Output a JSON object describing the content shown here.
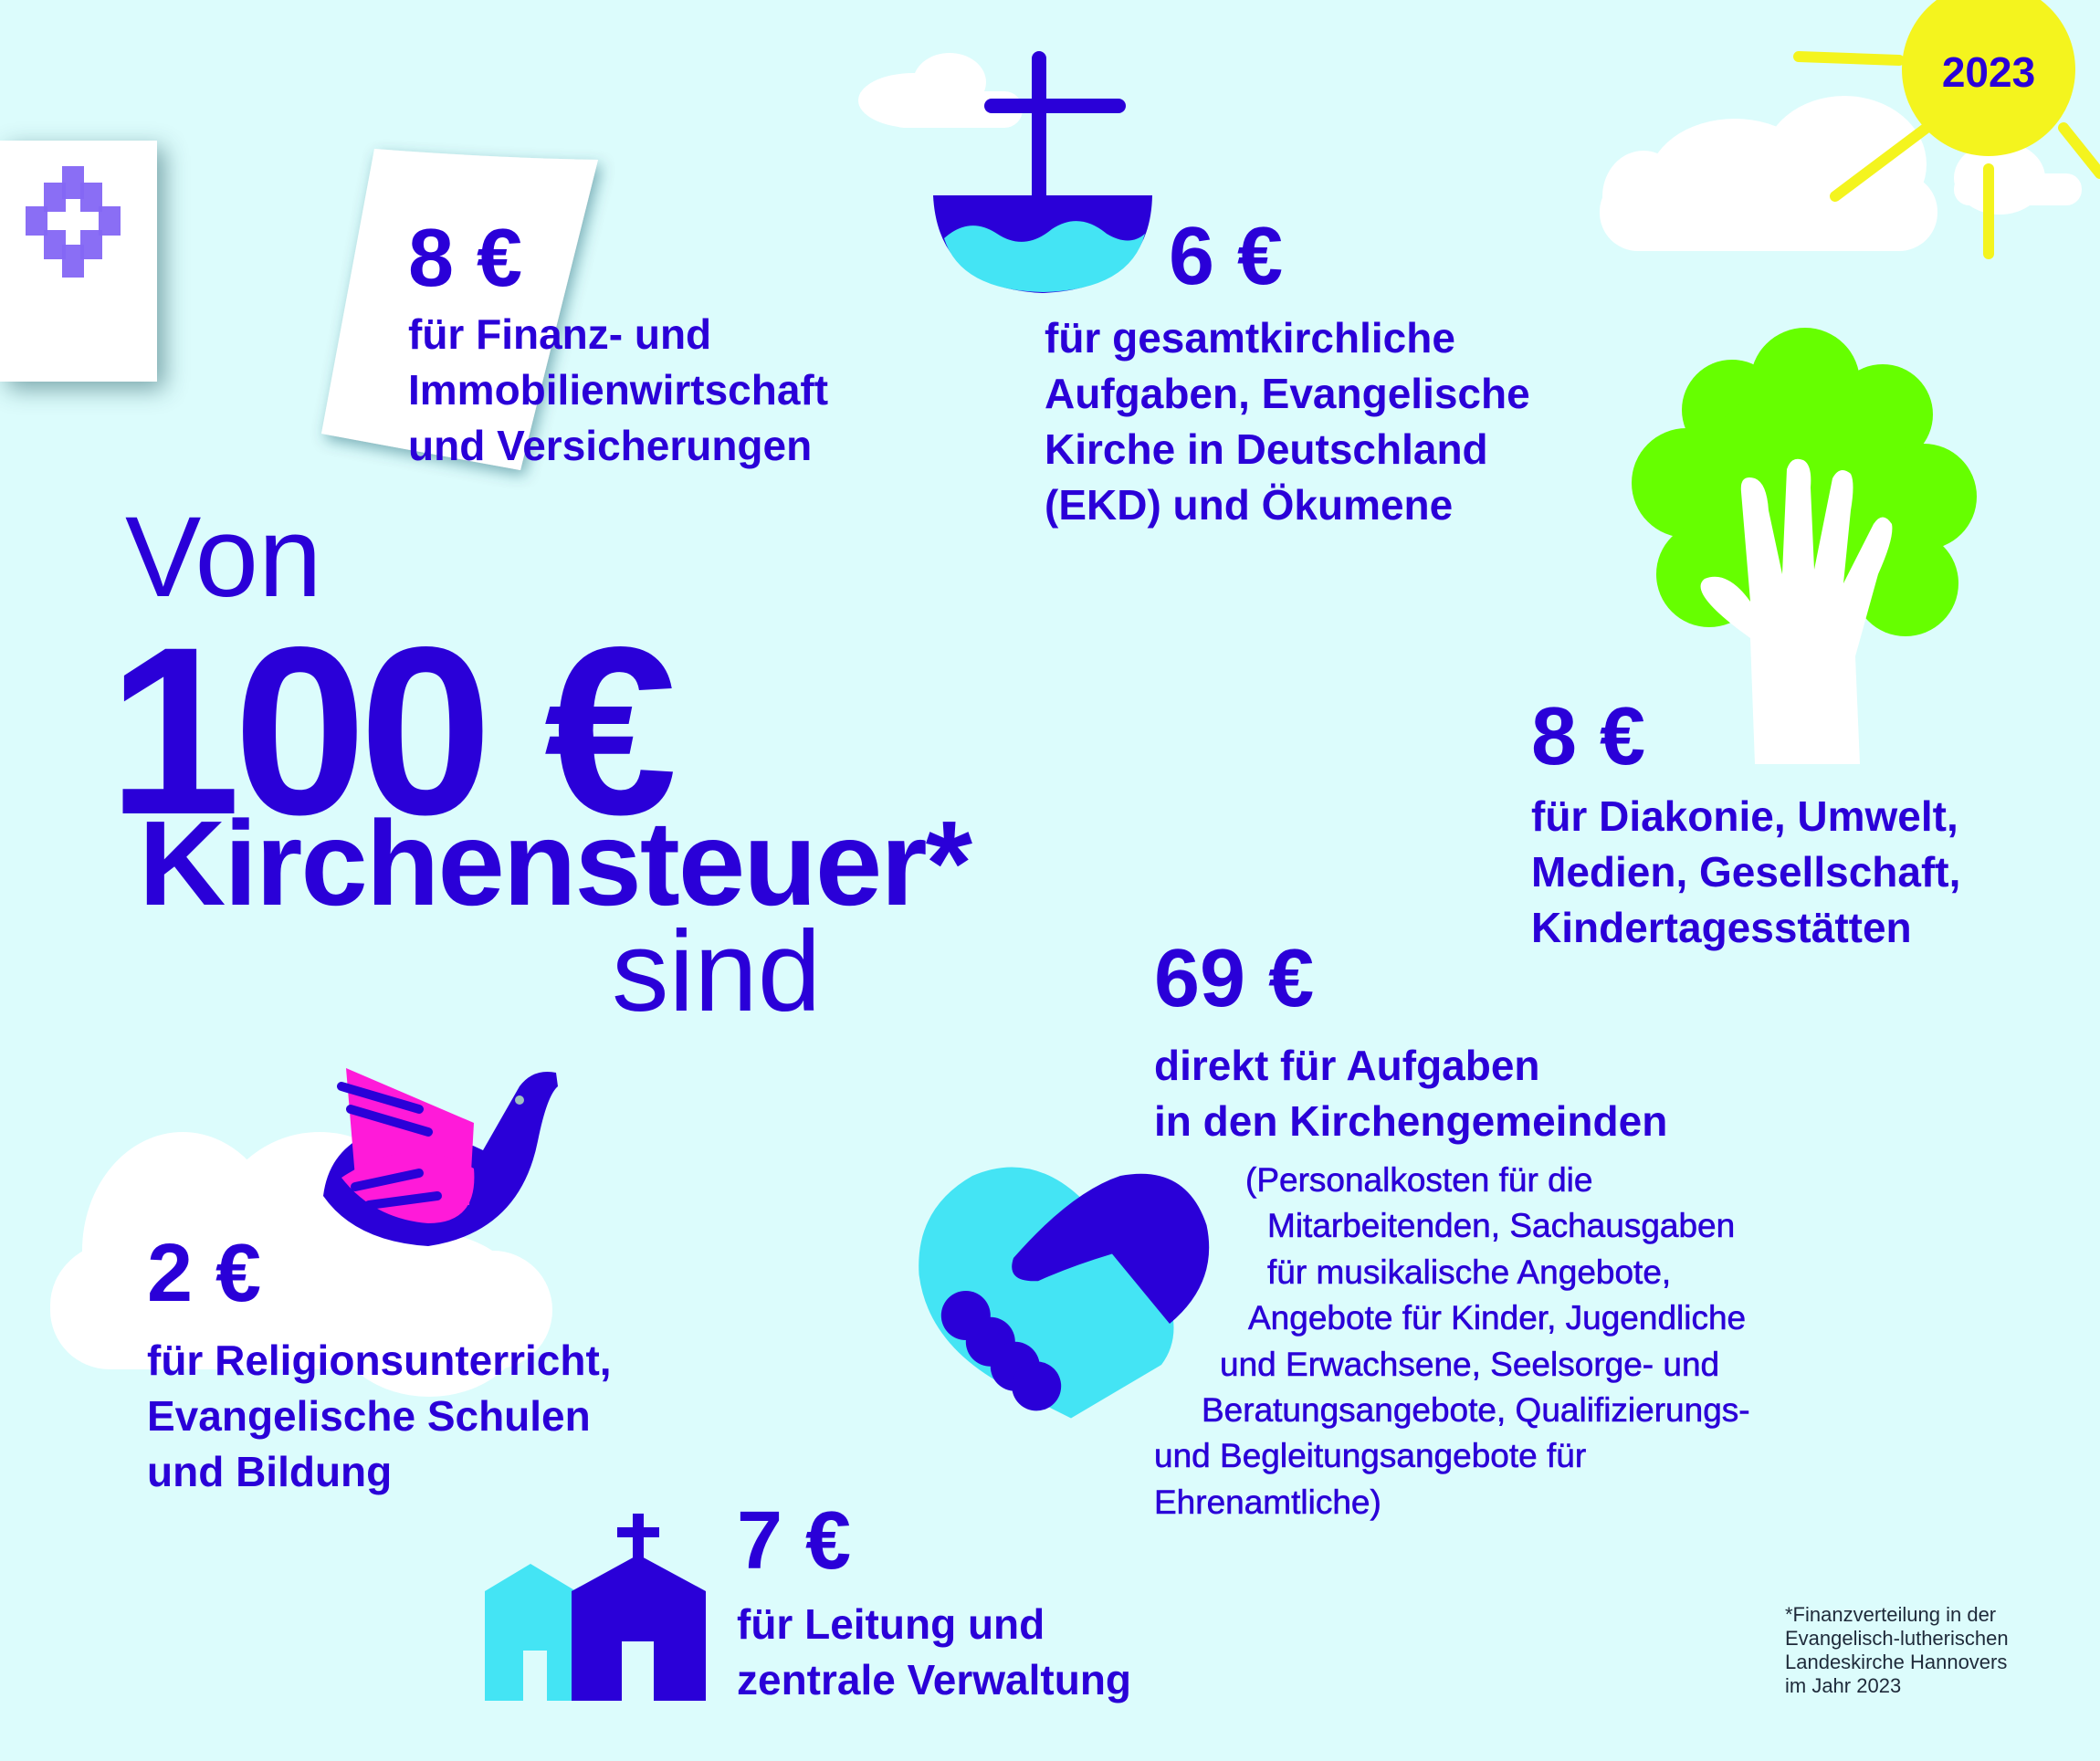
{
  "colors": {
    "background": "#dcfcfc",
    "text": "#2a00d8",
    "cyan": "#44e4f4",
    "green": "#66ff00",
    "magenta": "#ff1ad9",
    "sun": "#f4f41e",
    "logo": "#8466f4"
  },
  "year_badge": "2023",
  "headline": {
    "von": "Von",
    "amount": "100 €",
    "subject": "Kirchensteuer*",
    "sind": "sind"
  },
  "items": [
    {
      "icon": "document-icon",
      "amount": "8 €",
      "lines": [
        "für Finanz- und",
        "Immobilienwirtschaft",
        "und Versicherungen"
      ]
    },
    {
      "icon": "boat-cross-icon",
      "amount": "6 €",
      "lines": [
        "für gesamtkirchliche",
        "Aufgaben, Evangelische",
        "Kirche in Deutschland",
        "(EKD) und Ökumene"
      ]
    },
    {
      "icon": "tree-hand-icon",
      "amount": "8 €",
      "lines": [
        "für Diakonie, Umwelt,",
        "Medien, Gesellschaft,",
        "Kindertagesstätten"
      ]
    },
    {
      "icon": "handshake-heart-icon",
      "amount": "69 €",
      "lines": [
        "direkt für Aufgaben",
        "in den Kirchengemeinden"
      ],
      "detail": [
        "(Personalkosten für die",
        "Mitarbeitenden, Sachausgaben",
        "für musikalische Angebote,",
        "Angebote für Kinder, Jugendliche",
        "und Erwachsene, Seelsorge- und",
        "Beratungsangebote, Qualifizierungs-",
        "und Begleitungsangebote für",
        "Ehrenamtliche)"
      ]
    },
    {
      "icon": "dove-icon",
      "amount": "2 €",
      "lines": [
        "für Religionsunterricht,",
        "Evangelische Schulen",
        "und Bildung"
      ]
    },
    {
      "icon": "church-icon",
      "amount": "7 €",
      "lines": [
        "für Leitung und",
        "zentrale Verwaltung"
      ]
    }
  ],
  "footnote": [
    "*Finanzverteilung in der",
    "Evangelisch-lutherischen",
    "Landeskirche Hannovers",
    "im Jahr 2023"
  ]
}
